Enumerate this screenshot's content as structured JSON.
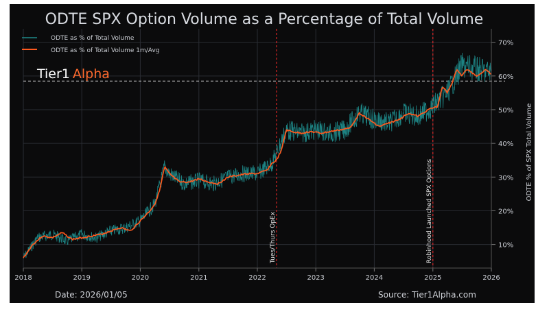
{
  "chart_data": {
    "type": "line",
    "title": "ODTE SPX Option Volume as a Percentage of Total Volume",
    "ylabel": "ODTE % of SPX Total Volume",
    "xlabel": "",
    "x_range": [
      "2018-01-01",
      "2026-01-01"
    ],
    "ylim": [
      3,
      74
    ],
    "x_ticks": [
      "2018",
      "2019",
      "2020",
      "2021",
      "2022",
      "2023",
      "2024",
      "2025",
      "2026"
    ],
    "y_ticks": [
      {
        "value": 10,
        "label": "10%"
      },
      {
        "value": 20,
        "label": "20%"
      },
      {
        "value": 30,
        "label": "30%"
      },
      {
        "value": 40,
        "label": "40%"
      },
      {
        "value": 50,
        "label": "50%"
      },
      {
        "value": 60,
        "label": "60%"
      },
      {
        "value": 70,
        "label": "70%"
      }
    ],
    "grid": true,
    "legend_position": "top-left",
    "series": [
      {
        "name": "ODTE as % of Total Volume",
        "color": "#1f8a8a",
        "style": "daily, noisy",
        "x": [
          "2018-01",
          "2018-04",
          "2018-07",
          "2018-10",
          "2019-01",
          "2019-04",
          "2019-07",
          "2019-10",
          "2020-01",
          "2020-04",
          "2020-06",
          "2020-07",
          "2020-10",
          "2021-01",
          "2021-04",
          "2021-07",
          "2021-10",
          "2022-01",
          "2022-04",
          "2022-07",
          "2022-10",
          "2023-01",
          "2023-04",
          "2023-07",
          "2023-10",
          "2024-01",
          "2024-04",
          "2024-07",
          "2024-10",
          "2025-01",
          "2025-04",
          "2025-07",
          "2025-10",
          "2026-01"
        ],
        "values": [
          6,
          12,
          13,
          11,
          13,
          12,
          14,
          15,
          17,
          22,
          33,
          31,
          28,
          29,
          28,
          30,
          31,
          31,
          34,
          44,
          43,
          44,
          43,
          44,
          49,
          47,
          46,
          49,
          48,
          51,
          55,
          63,
          62,
          61
        ]
      },
      {
        "name": "ODTE as % of Total Volume 1m/Avg",
        "color": "#ff5a1f",
        "x": [
          "2018-01",
          "2018-03",
          "2018-05",
          "2018-07",
          "2018-09",
          "2018-11",
          "2019-01",
          "2019-03",
          "2019-05",
          "2019-07",
          "2019-09",
          "2019-11",
          "2020-01",
          "2020-03",
          "2020-04",
          "2020-05",
          "2020-06",
          "2020-07",
          "2020-09",
          "2020-11",
          "2021-01",
          "2021-03",
          "2021-05",
          "2021-07",
          "2021-09",
          "2021-11",
          "2022-01",
          "2022-03",
          "2022-04",
          "2022-05",
          "2022-06",
          "2022-07",
          "2022-08",
          "2022-10",
          "2022-12",
          "2023-02",
          "2023-04",
          "2023-06",
          "2023-08",
          "2023-10",
          "2023-12",
          "2024-02",
          "2024-04",
          "2024-06",
          "2024-08",
          "2024-10",
          "2024-12",
          "2025-02",
          "2025-03",
          "2025-04",
          "2025-05",
          "2025-06",
          "2025-07",
          "2025-08",
          "2025-09",
          "2025-10",
          "2025-11",
          "2025-12",
          "2026-01"
        ],
        "values": [
          6,
          10,
          12.5,
          12,
          13.5,
          11.5,
          12,
          12.5,
          13,
          14,
          15,
          14,
          17,
          20,
          22,
          26,
          33,
          31,
          28.5,
          28.5,
          29.5,
          28.5,
          28,
          30,
          30.5,
          31,
          31,
          32,
          34,
          35,
          38,
          44,
          43.5,
          43,
          43.5,
          43,
          43.5,
          44,
          44.5,
          49,
          47,
          45,
          46,
          47,
          49,
          48,
          50,
          51,
          57,
          55,
          58,
          62,
          60,
          62,
          61,
          60,
          61,
          62,
          60.5
        ]
      }
    ],
    "reference_line": {
      "value": 58.5,
      "style": "dashed",
      "color": "#c8c8c8"
    },
    "event_markers": [
      {
        "date": "2022-05-01",
        "label": "Tues/Thurs OpEx",
        "color": "#ff2a2a"
      },
      {
        "date": "2025-01-01",
        "label": "Robinhood Launched SPX Options",
        "color": "#ff2a2a"
      }
    ]
  },
  "branding": {
    "part1": "Tier1",
    "part2": "Alpha",
    "color1": "#ffffff",
    "color2": "#ff6a2e"
  },
  "footer": {
    "date": "Date: 2026/01/05",
    "source": "Source: Tier1Alpha.com"
  }
}
